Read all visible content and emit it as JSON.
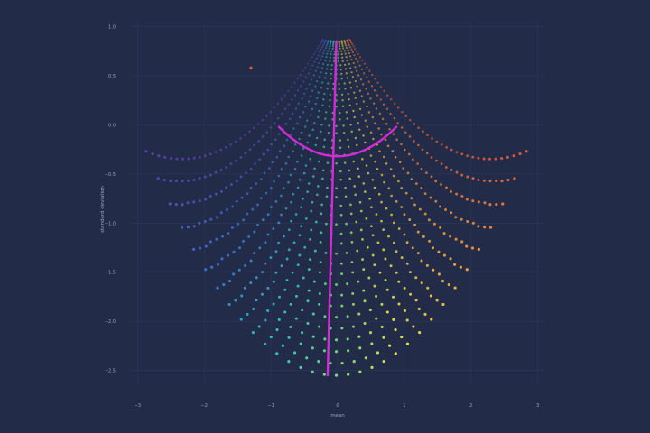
{
  "chart_data": {
    "type": "scatter",
    "title": "",
    "xlabel": "mean",
    "ylabel": "standard deviation",
    "xlim": [
      -3.1,
      3.1
    ],
    "ylim": [
      -2.65,
      1.05
    ],
    "grid": true,
    "background_color": "#222b47",
    "grid_color": "#2e3858",
    "highlight_color": "#d42bd8",
    "x_ticks": [
      -3,
      -2,
      -1,
      0,
      1,
      2,
      3
    ],
    "y_ticks": [
      -2.5,
      -2.0,
      -1.5,
      -1.0,
      -0.5,
      0.0,
      0.5,
      1.0
    ],
    "x_tick_labels": [
      "−3",
      "−2",
      "−1",
      "0",
      "1",
      "2",
      "3"
    ],
    "y_tick_labels": [
      "−2.5",
      "−2.0",
      "−1.5",
      "−1.0",
      "−0.5",
      "0.0",
      "0.5",
      "1.0"
    ],
    "colorscale": [
      "#5a3fa8",
      "#3b6fd0",
      "#2ec3c3",
      "#6fe07a",
      "#e6e04a",
      "#f0a040",
      "#e05a3a"
    ],
    "arcs": {
      "count": 48,
      "top_y": 0.85,
      "bottom_y": -2.55,
      "top_half_width": 0.2,
      "bottom_half_width": 2.85,
      "top_dy_frac": 0.08,
      "bottom_dy_frac": 0.8,
      "points_per_arc": 33,
      "x_offset": -0.02
    },
    "highlight_arc": {
      "y_center": -0.32,
      "half_width": 0.88,
      "dy_frac": 0.34
    },
    "highlight_line": {
      "x": [
        -0.15,
        -0.02
      ],
      "y": [
        -2.55,
        0.85
      ]
    },
    "outliers": [
      {
        "x": -1.3,
        "y": 0.58
      }
    ]
  }
}
